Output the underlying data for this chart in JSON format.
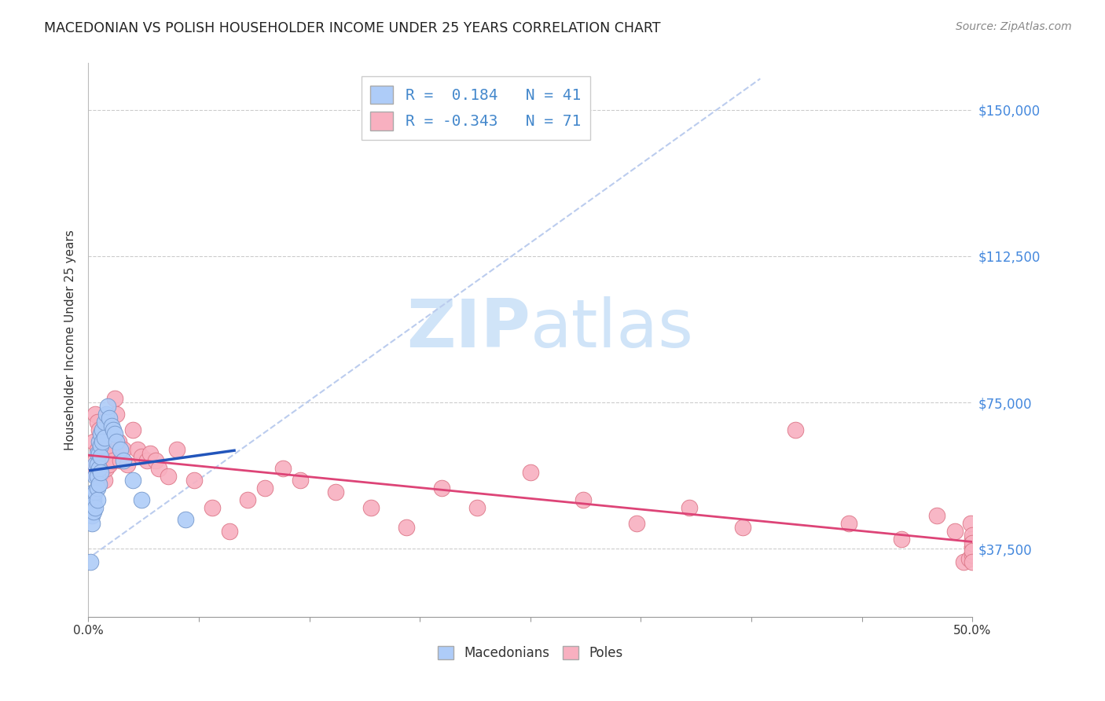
{
  "title": "MACEDONIAN VS POLISH HOUSEHOLDER INCOME UNDER 25 YEARS CORRELATION CHART",
  "source": "Source: ZipAtlas.com",
  "ylabel": "Householder Income Under 25 years",
  "xlim": [
    0.0,
    0.5
  ],
  "ylim": [
    20000,
    162000
  ],
  "yticks": [
    37500,
    75000,
    112500,
    150000
  ],
  "ytick_labels": [
    "$37,500",
    "$75,000",
    "$112,500",
    "$150,000"
  ],
  "xticks": [
    0.0,
    0.0625,
    0.125,
    0.1875,
    0.25,
    0.3125,
    0.375,
    0.4375,
    0.5
  ],
  "xtick_labels": [
    "0.0%",
    "",
    "",
    "",
    "",
    "",
    "",
    "",
    "50.0%"
  ],
  "grid_color": "#cccccc",
  "background_color": "#ffffff",
  "mac_color": "#aeccf8",
  "mac_edge_color": "#7799cc",
  "pol_color": "#f8b0c0",
  "pol_edge_color": "#dd7788",
  "mac_line_color": "#2255bb",
  "pol_line_color": "#dd4477",
  "dash_line_color": "#bbccee",
  "watermark_color": "#d0e4f8",
  "legend_box_color": "#4488cc",
  "mac_R": 0.184,
  "mac_N": 41,
  "pol_R": -0.343,
  "pol_N": 71,
  "mac_points_x": [
    0.001,
    0.002,
    0.002,
    0.002,
    0.003,
    0.003,
    0.003,
    0.003,
    0.004,
    0.004,
    0.004,
    0.004,
    0.005,
    0.005,
    0.005,
    0.005,
    0.005,
    0.006,
    0.006,
    0.006,
    0.006,
    0.007,
    0.007,
    0.007,
    0.007,
    0.008,
    0.008,
    0.009,
    0.009,
    0.01,
    0.011,
    0.012,
    0.013,
    0.014,
    0.015,
    0.016,
    0.018,
    0.02,
    0.025,
    0.03,
    0.055
  ],
  "mac_points_y": [
    34000,
    48000,
    46000,
    44000,
    52000,
    50000,
    49000,
    47000,
    59000,
    56000,
    52000,
    48000,
    62000,
    59000,
    56000,
    53000,
    50000,
    65000,
    62000,
    58000,
    54000,
    67000,
    64000,
    61000,
    57000,
    68000,
    65000,
    70000,
    66000,
    72000,
    74000,
    71000,
    69000,
    68000,
    67000,
    65000,
    63000,
    60000,
    55000,
    50000,
    45000
  ],
  "pol_points_x": [
    0.002,
    0.003,
    0.003,
    0.004,
    0.004,
    0.005,
    0.005,
    0.005,
    0.006,
    0.006,
    0.006,
    0.007,
    0.007,
    0.008,
    0.008,
    0.009,
    0.009,
    0.01,
    0.01,
    0.011,
    0.012,
    0.013,
    0.014,
    0.015,
    0.016,
    0.017,
    0.018,
    0.02,
    0.022,
    0.025,
    0.028,
    0.03,
    0.033,
    0.035,
    0.038,
    0.04,
    0.045,
    0.05,
    0.06,
    0.07,
    0.08,
    0.09,
    0.1,
    0.11,
    0.12,
    0.14,
    0.16,
    0.18,
    0.2,
    0.22,
    0.25,
    0.28,
    0.31,
    0.34,
    0.37,
    0.4,
    0.43,
    0.46,
    0.48,
    0.49,
    0.495,
    0.498,
    0.499,
    0.5,
    0.5,
    0.5,
    0.5,
    0.5,
    0.5,
    0.5,
    0.5
  ],
  "pol_points_y": [
    50000,
    65000,
    57000,
    72000,
    60000,
    70000,
    63000,
    56000,
    68000,
    62000,
    56000,
    66000,
    60000,
    63000,
    57000,
    61000,
    55000,
    64000,
    58000,
    62000,
    59000,
    63000,
    60000,
    76000,
    72000,
    65000,
    60000,
    63000,
    59000,
    68000,
    63000,
    61000,
    60000,
    62000,
    60000,
    58000,
    56000,
    63000,
    55000,
    48000,
    42000,
    50000,
    53000,
    58000,
    55000,
    52000,
    48000,
    43000,
    53000,
    48000,
    57000,
    50000,
    44000,
    48000,
    43000,
    68000,
    44000,
    40000,
    46000,
    42000,
    34000,
    35000,
    44000,
    40000,
    38000,
    36000,
    38000,
    41000,
    39000,
    37000,
    34000
  ]
}
